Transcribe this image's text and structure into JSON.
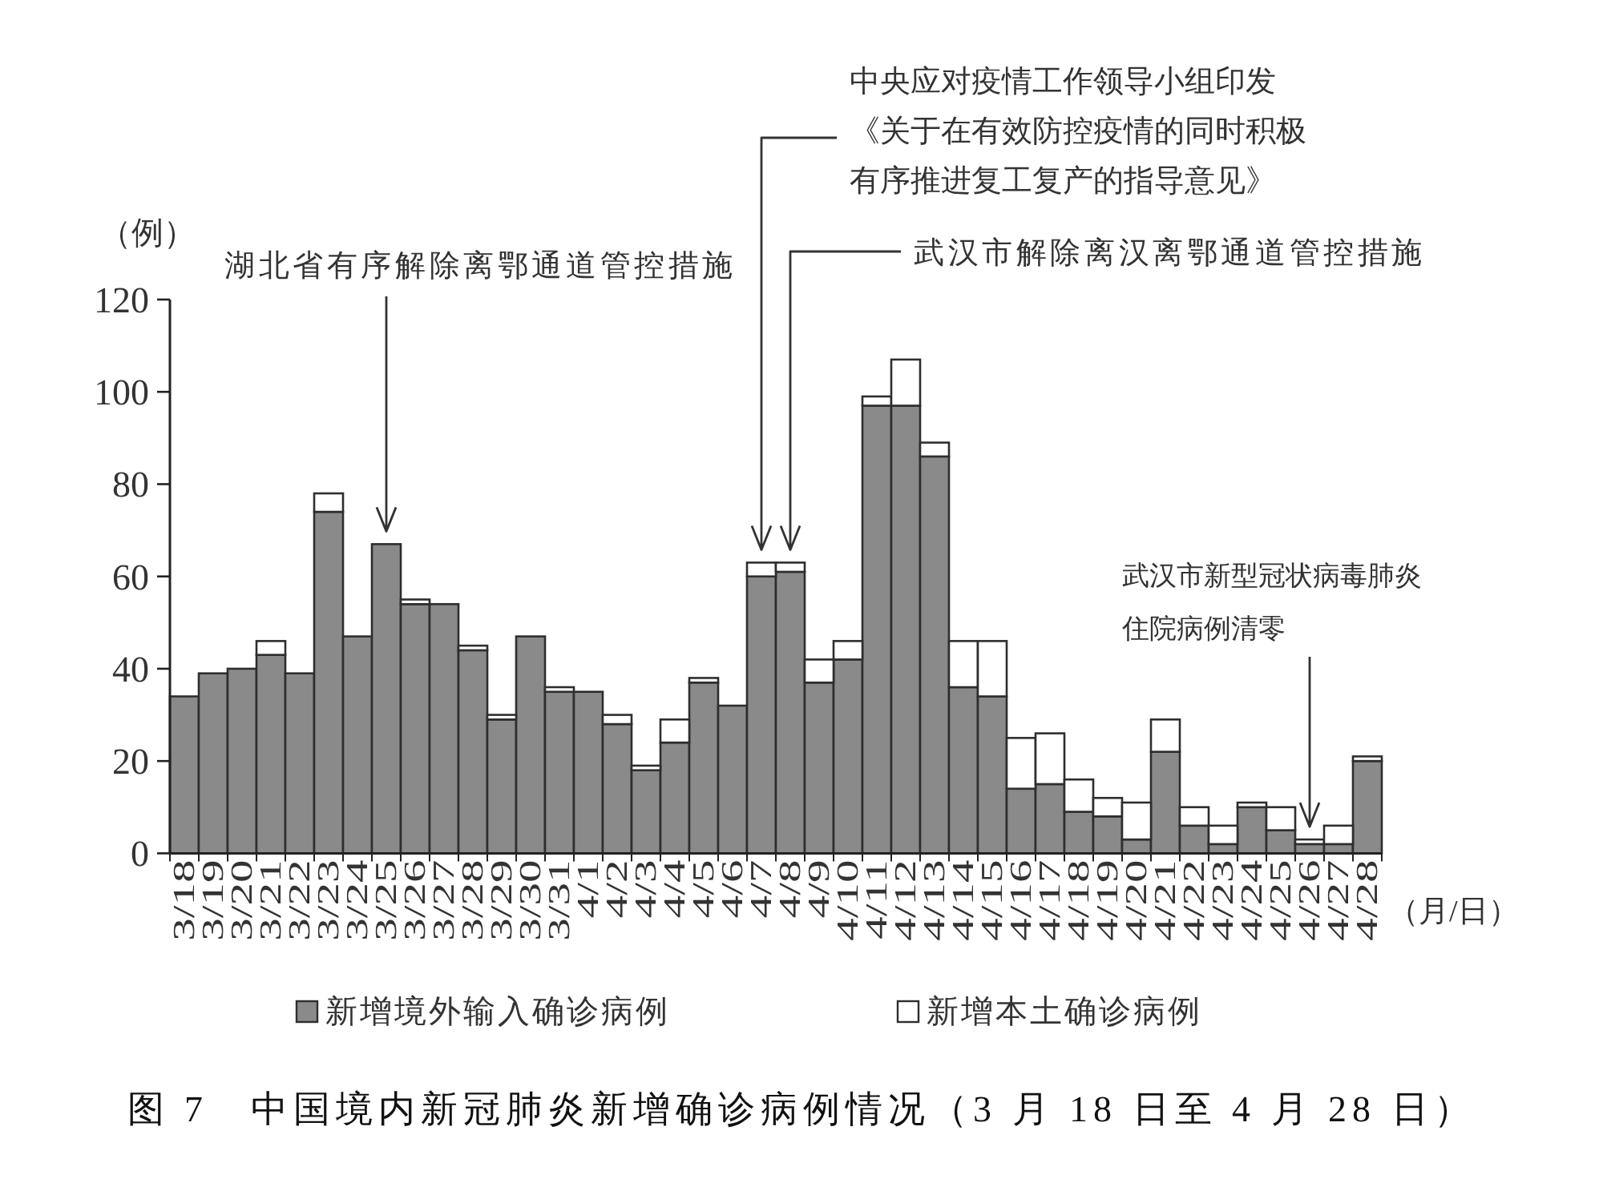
{
  "chart_data": {
    "type": "bar",
    "title": "图 7　中国境内新冠肺炎新增确诊病例情况（3 月 18 日至 4 月 28 日）",
    "ylabel": "（例）",
    "xlabel": "（月/日）",
    "categories": [
      "3/18",
      "3/19",
      "3/20",
      "3/21",
      "3/22",
      "3/23",
      "3/24",
      "3/25",
      "3/26",
      "3/27",
      "3/28",
      "3/29",
      "3/30",
      "3/31",
      "4/1",
      "4/2",
      "4/3",
      "4/4",
      "4/5",
      "4/6",
      "4/7",
      "4/8",
      "4/9",
      "4/10",
      "4/11",
      "4/12",
      "4/13",
      "4/14",
      "4/15",
      "4/16",
      "4/17",
      "4/18",
      "4/19",
      "4/20",
      "4/21",
      "4/22",
      "4/23",
      "4/24",
      "4/25",
      "4/26",
      "4/27",
      "4/28"
    ],
    "series": [
      {
        "name": "新增境外输入确诊病例",
        "color": "#8a8a8a",
        "values": [
          34,
          39,
          40,
          43,
          39,
          74,
          47,
          67,
          54,
          54,
          44,
          29,
          47,
          35,
          35,
          28,
          18,
          24,
          37,
          32,
          60,
          61,
          37,
          42,
          97,
          97,
          86,
          36,
          34,
          14,
          15,
          9,
          8,
          3,
          22,
          6,
          2,
          10,
          5,
          2,
          2,
          20
        ]
      },
      {
        "name": "新增本土确诊病例",
        "color": "#ffffff",
        "values": [
          0,
          0,
          0,
          3,
          0,
          4,
          0,
          0,
          1,
          0,
          1,
          1,
          0,
          1,
          0,
          2,
          1,
          5,
          1,
          0,
          3,
          2,
          5,
          4,
          2,
          10,
          3,
          10,
          12,
          11,
          11,
          7,
          4,
          8,
          7,
          4,
          4,
          1,
          5,
          1,
          4,
          1
        ]
      }
    ],
    "stacked": true,
    "ylim": [
      0,
      120
    ],
    "yticks": [
      0,
      20,
      40,
      60,
      80,
      100,
      120
    ],
    "legend": "bottom",
    "annotations": [
      {
        "text": "湖北省有序解除离鄂通道管控措施",
        "x": "3/25",
        "y": 67
      },
      {
        "text": "中央应对疫情工作领导小组印发《关于在有效防控疫情的同时积极有序推进复工复产的指导意见》",
        "x": "4/7",
        "y": 63
      },
      {
        "text": "武汉市解除离汉离鄂通道管控措施",
        "x": "4/8",
        "y": 63
      },
      {
        "text": "武汉市新型冠状病毒肺炎住院病例清零",
        "x": "4/26",
        "y": 3
      }
    ]
  }
}
